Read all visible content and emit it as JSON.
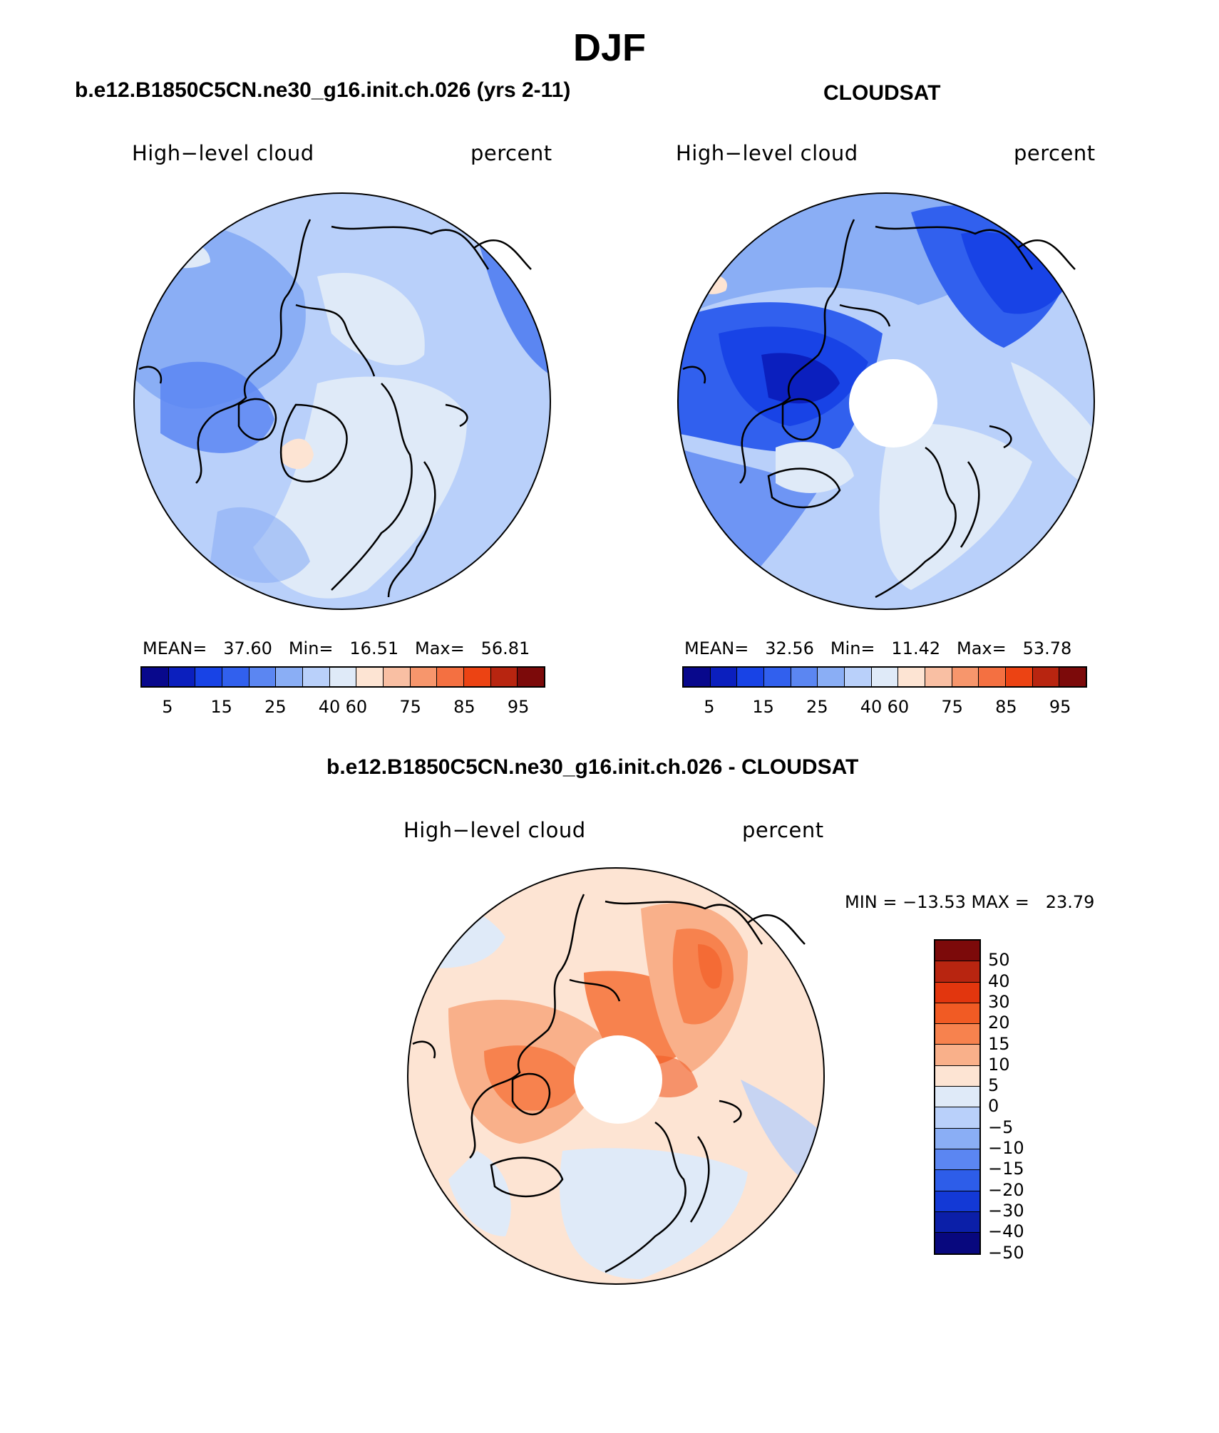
{
  "title": "DJF",
  "panels": [
    {
      "subtitle": "b.e12.B1850C5CN.ne30_g16.init.ch.026 (yrs 2-11)",
      "left_label": "High−level cloud",
      "right_label": "percent",
      "stats": "MEAN=   37.60   Min=   16.51   Max=   56.81",
      "has_hole": false
    },
    {
      "subtitle": "CLOUDSAT",
      "left_label": "High−level cloud",
      "right_label": "percent",
      "stats": "MEAN=   32.56   Min=   11.42   Max=   53.78",
      "has_hole": true
    },
    {
      "subtitle": "b.e12.B1850C5CN.ne30_g16.init.ch.026 - CLOUDSAT",
      "left_label": "High−level cloud",
      "right_label": "percent",
      "stats": "MIN = −13.53 MAX =   23.79",
      "has_hole": true
    }
  ],
  "colorbar_abs": {
    "colors": [
      "#08088c",
      "#0b1fbe",
      "#1843e6",
      "#3160ee",
      "#5b86f2",
      "#8aaef5",
      "#b9d0fa",
      "#dfeaf8",
      "#fde4d3",
      "#f9bfa3",
      "#f7966c",
      "#f47041",
      "#ec4313",
      "#b82510",
      "#7c0a0a"
    ],
    "tick_labels": [
      "5",
      "15",
      "25",
      "40",
      "60",
      "75",
      "85",
      "95"
    ]
  },
  "colorbar_diff": {
    "colors_top_to_bottom": [
      "#7c0a0a",
      "#b82510",
      "#e2360e",
      "#f15b24",
      "#f7824e",
      "#f9b08a",
      "#fde4d3",
      "#dfeaf8",
      "#b9d0fa",
      "#8aaef5",
      "#5b86f2",
      "#2d5de9",
      "#1339d6",
      "#0b1fa8",
      "#08087e"
    ],
    "tick_labels_top_to_bottom": [
      "50",
      "40",
      "30",
      "20",
      "15",
      "10",
      "5",
      "0",
      "−5",
      "−10",
      "−15",
      "−20",
      "−30",
      "−40",
      "−50"
    ]
  },
  "chart_data": [
    {
      "type": "heatmap",
      "title": "b.e12.B1850C5CN.ne30_g16.init.ch.026 (yrs 2-11)",
      "variable": "High−level cloud",
      "units": "percent",
      "season": "DJF",
      "mean": 37.6,
      "min": 16.51,
      "max": 56.81,
      "levels": [
        5,
        10,
        15,
        20,
        25,
        30,
        40,
        50,
        60,
        70,
        75,
        80,
        85,
        90,
        95
      ]
    },
    {
      "type": "heatmap",
      "title": "CLOUDSAT",
      "variable": "High−level cloud",
      "units": "percent",
      "season": "DJF",
      "mean": 32.56,
      "min": 11.42,
      "max": 53.78,
      "levels": [
        5,
        10,
        15,
        20,
        25,
        30,
        40,
        50,
        60,
        70,
        75,
        80,
        85,
        90,
        95
      ]
    },
    {
      "type": "heatmap",
      "title": "b.e12.B1850C5CN.ne30_g16.init.ch.026 - CLOUDSAT",
      "variable": "High−level cloud",
      "units": "percent",
      "season": "DJF",
      "min": -13.53,
      "max": 23.79,
      "levels": [
        -50,
        -40,
        -30,
        -20,
        -15,
        -10,
        -5,
        0,
        5,
        10,
        15,
        20,
        30,
        40,
        50
      ]
    }
  ]
}
